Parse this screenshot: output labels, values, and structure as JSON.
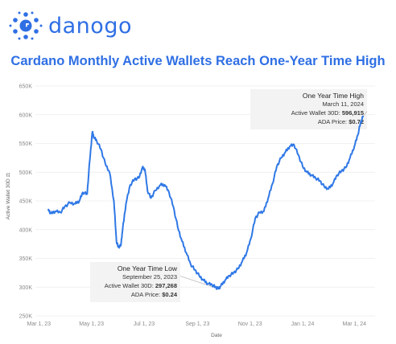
{
  "brand": {
    "name": "danogo",
    "logo_icon": "danogo-logo-icon",
    "color": "#2f6fe4"
  },
  "chart_data": {
    "type": "line",
    "title": "Cardano Monthly Active Wallets Reach One-Year Time High",
    "xlabel": "Date",
    "ylabel": "Active Wallet 30D",
    "ylabel_suffix": "⚖",
    "ylim": [
      250000,
      650000
    ],
    "yticks": [
      250000,
      300000,
      350000,
      400000,
      450000,
      500000,
      550000,
      600000,
      650000
    ],
    "ytick_labels": [
      "250K",
      "300K",
      "350K",
      "400K",
      "450K",
      "500K",
      "550K",
      "600K",
      "650K"
    ],
    "xlim": [
      "2023-02-25",
      "2024-03-25"
    ],
    "xticks": [
      "2023-03-01",
      "2023-05-01",
      "2023-07-01",
      "2023-09-01",
      "2023-11-01",
      "2024-01-01",
      "2024-03-01"
    ],
    "xtick_labels": [
      "Mar 1, 23",
      "May 1, 23",
      "Jul 1, 23",
      "Sep 1, 23",
      "Nov 1, 23",
      "Jan 1, 24",
      "Mar 1, 24"
    ],
    "grid": true,
    "line_color": "#2f78e6",
    "series": [
      {
        "name": "",
        "x": [
          "2023-03-12",
          "2023-03-15",
          "2023-03-20",
          "2023-03-26",
          "2023-03-31",
          "2023-04-06",
          "2023-04-12",
          "2023-04-17",
          "2023-04-21",
          "2023-04-26",
          "2023-04-29",
          "2023-05-02",
          "2023-05-04",
          "2023-05-07",
          "2023-05-12",
          "2023-05-17",
          "2023-05-22",
          "2023-05-27",
          "2023-05-30",
          "2023-06-01",
          "2023-06-04",
          "2023-06-06",
          "2023-06-10",
          "2023-06-15",
          "2023-06-20",
          "2023-06-25",
          "2023-06-29",
          "2023-07-02",
          "2023-07-05",
          "2023-07-09",
          "2023-07-14",
          "2023-07-20",
          "2023-07-25",
          "2023-07-30",
          "2023-08-04",
          "2023-08-09",
          "2023-08-14",
          "2023-08-19",
          "2023-08-24",
          "2023-08-29",
          "2023-09-03",
          "2023-09-08",
          "2023-09-13",
          "2023-09-18",
          "2023-09-22",
          "2023-09-25",
          "2023-09-28",
          "2023-10-03",
          "2023-10-08",
          "2023-10-13",
          "2023-10-18",
          "2023-10-23",
          "2023-10-28",
          "2023-11-02",
          "2023-11-07",
          "2023-11-12",
          "2023-11-17",
          "2023-11-22",
          "2023-11-27",
          "2023-12-02",
          "2023-12-07",
          "2023-12-12",
          "2023-12-17",
          "2023-12-22",
          "2023-12-27",
          "2024-01-01",
          "2024-01-06",
          "2024-01-11",
          "2024-01-16",
          "2024-01-21",
          "2024-01-26",
          "2024-01-31",
          "2024-02-05",
          "2024-02-10",
          "2024-02-15",
          "2024-02-20",
          "2024-02-25",
          "2024-03-01",
          "2024-03-05",
          "2024-03-08",
          "2024-03-11"
        ],
        "values": [
          435000,
          428000,
          432000,
          430000,
          440000,
          447000,
          445000,
          450000,
          465000,
          462000,
          520000,
          570000,
          560000,
          555000,
          540000,
          515000,
          500000,
          450000,
          380000,
          370000,
          372000,
          398000,
          445000,
          478000,
          488000,
          490000,
          508000,
          505000,
          468000,
          455000,
          468000,
          478000,
          478000,
          465000,
          440000,
          405000,
          380000,
          360000,
          340000,
          330000,
          320000,
          312000,
          306000,
          304000,
          300000,
          297268,
          302000,
          312000,
          320000,
          325000,
          332000,
          345000,
          360000,
          385000,
          420000,
          430000,
          432000,
          455000,
          480000,
          510000,
          525000,
          535000,
          545000,
          548000,
          530000,
          510000,
          500000,
          495000,
          490000,
          485000,
          475000,
          471000,
          480000,
          495000,
          502000,
          508000,
          525000,
          545000,
          565000,
          585000,
          596915
        ]
      }
    ],
    "annotations": [
      {
        "title": "One Year Time High",
        "date": "March 11, 2024",
        "wallet_label": "Active Wallet 30D:",
        "wallet_value": "596,915",
        "price_label": "ADA Price:",
        "price_value": "$0.72",
        "point_x": "2024-03-11",
        "point_y": 596915
      },
      {
        "title": "One Year Time Low",
        "date": "September 25, 2023",
        "wallet_label": "Active Wallet 30D:",
        "wallet_value": "297,268",
        "price_label": "ADA Price:",
        "price_value": "$0.24",
        "point_x": "2023-09-25",
        "point_y": 297268
      }
    ]
  }
}
